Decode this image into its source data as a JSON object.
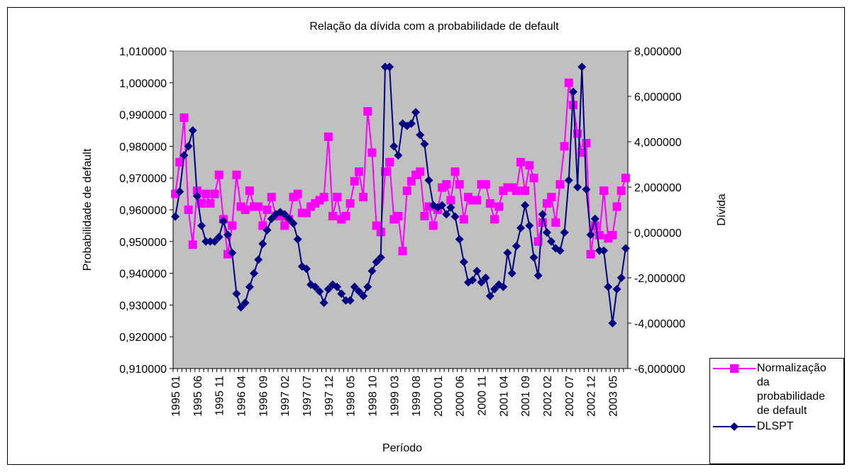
{
  "chart_data": {
    "type": "line",
    "title": "Relação da dívida com a probabilidade de default",
    "x_label": "Período",
    "y_label": "Probabilidade de default",
    "y2_label": "Dívida",
    "categories": [
      "1995 01",
      null,
      null,
      null,
      null,
      "1995 06",
      null,
      null,
      null,
      null,
      "1995 11",
      null,
      null,
      null,
      null,
      "1996 04",
      null,
      null,
      null,
      null,
      "1996 09",
      null,
      null,
      null,
      null,
      "1997 02",
      null,
      null,
      null,
      null,
      "1997 07",
      null,
      null,
      null,
      null,
      "1997 12",
      null,
      null,
      null,
      null,
      "1998 05",
      null,
      null,
      null,
      null,
      "1998 10",
      null,
      null,
      null,
      null,
      "1999 03",
      null,
      null,
      null,
      null,
      "1999 08",
      null,
      null,
      null,
      null,
      "2000 01",
      null,
      null,
      null,
      null,
      "2000 06",
      null,
      null,
      null,
      null,
      "2000 11",
      null,
      null,
      null,
      null,
      "2001 04",
      null,
      null,
      null,
      null,
      "2001 09",
      null,
      null,
      null,
      null,
      "2002 02",
      null,
      null,
      null,
      null,
      "2002 07",
      null,
      null,
      null,
      null,
      "2002 12",
      null,
      null,
      null,
      null,
      "2003 05",
      null,
      null,
      null
    ],
    "series": [
      {
        "name": "Normalização da probabilidade de default",
        "color": "#ff00ff",
        "marker": "square",
        "axis": "y",
        "values": [
          0.965,
          0.975,
          0.989,
          0.96,
          0.949,
          0.966,
          0.962,
          0.965,
          0.962,
          0.965,
          0.971,
          0.957,
          0.946,
          0.955,
          0.971,
          0.961,
          0.96,
          0.966,
          0.961,
          0.961,
          0.955,
          0.96,
          0.964,
          0.958,
          0.958,
          0.955,
          0.957,
          0.964,
          0.965,
          0.959,
          0.959,
          0.961,
          0.962,
          0.963,
          0.964,
          0.983,
          0.958,
          0.964,
          0.957,
          0.958,
          0.962,
          0.969,
          0.972,
          0.964,
          0.991,
          0.978,
          0.955,
          0.953,
          0.972,
          0.975,
          0.957,
          0.958,
          0.947,
          0.966,
          0.969,
          0.971,
          0.972,
          0.958,
          0.961,
          0.955,
          0.96,
          0.967,
          0.968,
          0.963,
          0.972,
          0.968,
          0.957,
          0.964,
          0.963,
          0.963,
          0.968,
          0.968,
          0.962,
          0.957,
          0.961,
          0.966,
          0.967,
          0.967,
          0.966,
          0.975,
          0.966,
          0.974,
          0.97,
          0.95,
          0.956,
          0.962,
          0.964,
          0.956,
          0.968,
          0.98,
          1.0,
          0.993,
          0.984,
          0.978,
          0.981,
          0.946,
          0.955,
          0.952,
          0.966,
          0.951,
          0.952,
          0.961,
          0.966,
          0.97
        ]
      },
      {
        "name": "DLSPT",
        "color": "#000080",
        "marker": "diamond",
        "axis": "y2",
        "values": [
          0.7,
          1.8,
          3.4,
          3.8,
          4.5,
          1.6,
          0.3,
          -0.4,
          -0.4,
          -0.4,
          -0.2,
          0.5,
          -0.1,
          -0.9,
          -2.7,
          -3.3,
          -3.1,
          -2.4,
          -1.8,
          -1.2,
          -0.5,
          0.1,
          0.6,
          0.8,
          0.9,
          0.8,
          0.6,
          0.4,
          -0.3,
          -1.5,
          -1.6,
          -2.3,
          -2.4,
          -2.6,
          -3.1,
          -2.5,
          -2.3,
          -2.4,
          -2.7,
          -3.0,
          -3.0,
          -2.4,
          -2.6,
          -2.8,
          -2.4,
          -1.7,
          -1.3,
          -1.1,
          7.3,
          7.3,
          3.8,
          3.4,
          4.8,
          4.7,
          4.8,
          5.3,
          4.3,
          3.9,
          2.3,
          1.2,
          1.1,
          1.2,
          0.8,
          1.1,
          0.7,
          -0.3,
          -1.3,
          -2.2,
          -2.1,
          -1.7,
          -2.2,
          -2.0,
          -2.8,
          -2.5,
          -2.3,
          -2.4,
          -0.9,
          -1.8,
          -0.6,
          0.2,
          1.2,
          0.3,
          -1.1,
          -1.9,
          0.8,
          0.0,
          -0.4,
          -0.7,
          -0.8,
          0.0,
          2.3,
          6.2,
          2.0,
          7.3,
          1.9,
          -0.1,
          0.6,
          -0.8,
          -0.8,
          -2.4,
          -4.0,
          -2.5,
          -2.0,
          -0.7
        ]
      }
    ],
    "ylim": [
      0.91,
      1.01
    ],
    "yticks": [
      {
        "value": 0.91,
        "label": "0,910000"
      },
      {
        "value": 0.92,
        "label": "0,920000"
      },
      {
        "value": 0.93,
        "label": "0,930000"
      },
      {
        "value": 0.94,
        "label": "0,940000"
      },
      {
        "value": 0.95,
        "label": "0,950000"
      },
      {
        "value": 0.96,
        "label": "0,960000"
      },
      {
        "value": 0.97,
        "label": "0,970000"
      },
      {
        "value": 0.98,
        "label": "0,980000"
      },
      {
        "value": 0.99,
        "label": "0,990000"
      },
      {
        "value": 1.0,
        "label": "1,000000"
      },
      {
        "value": 1.01,
        "label": "1,010000"
      }
    ],
    "y2lim": [
      -6,
      8
    ],
    "y2ticks": [
      {
        "value": -6,
        "label": "-6,000000"
      },
      {
        "value": -4,
        "label": "-4,000000"
      },
      {
        "value": -2,
        "label": "-2,000000"
      },
      {
        "value": 0,
        "label": "0,000000"
      },
      {
        "value": 2,
        "label": "2,000000"
      },
      {
        "value": 4,
        "label": "4,000000"
      },
      {
        "value": 6,
        "label": "6,000000"
      },
      {
        "value": 8,
        "label": "8,000000"
      }
    ],
    "grid": false,
    "plot_background": "#c0c0c0",
    "legend": "bottom-right"
  }
}
